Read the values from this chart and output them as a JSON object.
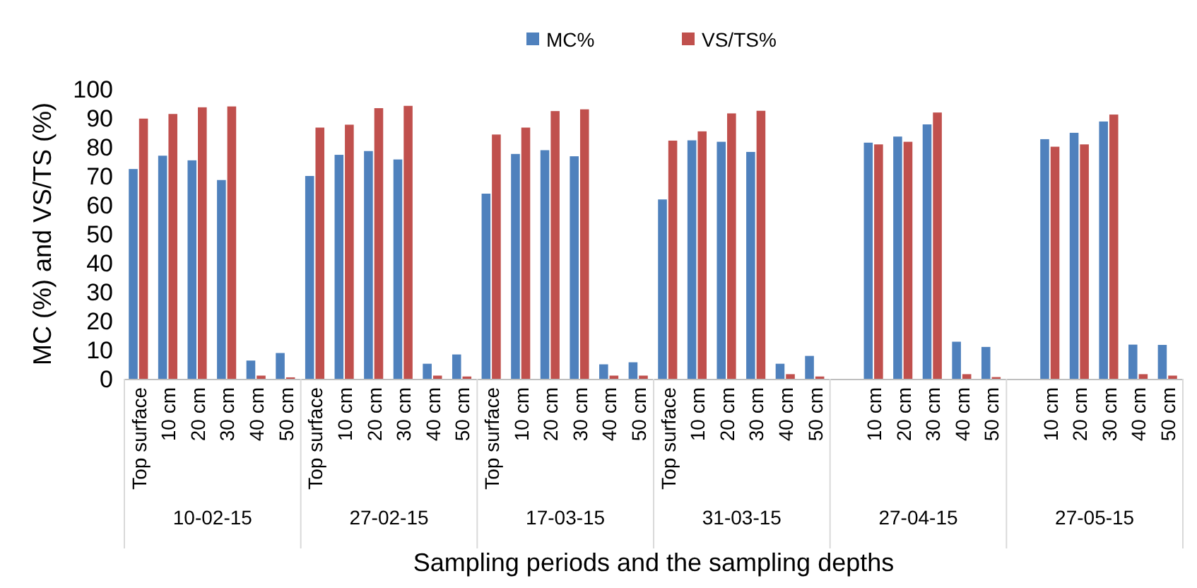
{
  "chart_data": {
    "type": "bar",
    "xlabel": "Sampling periods and the sampling depths",
    "ylabel": "MC (%) and VS/TS (%)",
    "categories": [
      "Top surface",
      "10 cm",
      "20 cm",
      "30 cm",
      "40 cm",
      "50 cm",
      "Top surface",
      "10 cm",
      "20 cm",
      "30 cm",
      "40 cm",
      "50 cm",
      "Top surface",
      "10 cm",
      "20 cm",
      "30 cm",
      "40 cm",
      "50 cm",
      "Top surface",
      "10 cm",
      "20 cm",
      "30 cm",
      "40 cm",
      "50 cm",
      null,
      "10 cm",
      "20 cm",
      "30 cm",
      "40 cm",
      "50 cm",
      null,
      "10 cm",
      "20 cm",
      "30 cm",
      "40 cm",
      "50 cm"
    ],
    "series": [
      {
        "name": "MC%",
        "color": "#4f81bd",
        "values": [
          72.4,
          77.0,
          75.4,
          68.6,
          6.3,
          8.9,
          70.0,
          77.3,
          78.6,
          75.7,
          5.2,
          8.4,
          63.9,
          77.6,
          78.9,
          76.8,
          5.0,
          5.7,
          61.9,
          82.3,
          81.8,
          78.3,
          5.2,
          7.9,
          null,
          81.5,
          83.6,
          87.8,
          12.8,
          11.0,
          null,
          82.7,
          84.9,
          88.8,
          11.8,
          11.7
        ]
      },
      {
        "name": "VS/TS%",
        "color": "#c0504d",
        "values": [
          89.8,
          91.4,
          93.7,
          94.0,
          1.1,
          0.5,
          86.7,
          87.7,
          93.4,
          94.2,
          1.1,
          0.8,
          84.3,
          86.7,
          92.4,
          93.0,
          1.1,
          1.1,
          82.2,
          85.4,
          91.6,
          92.5,
          1.6,
          0.8,
          null,
          80.9,
          81.8,
          91.9,
          1.6,
          0.6,
          null,
          80.1,
          80.9,
          91.2,
          1.6,
          1.1
        ]
      }
    ],
    "annotations": [
      "10-02-15",
      "27-02-15",
      "17-03-15",
      "31-03-15",
      "27-04-15",
      "27-05-15"
    ],
    "ylim": [
      0,
      100
    ],
    "yticks": [
      0,
      10,
      20,
      30,
      40,
      50,
      60,
      70,
      80,
      90,
      100
    ],
    "legend": "top",
    "grid": false
  }
}
